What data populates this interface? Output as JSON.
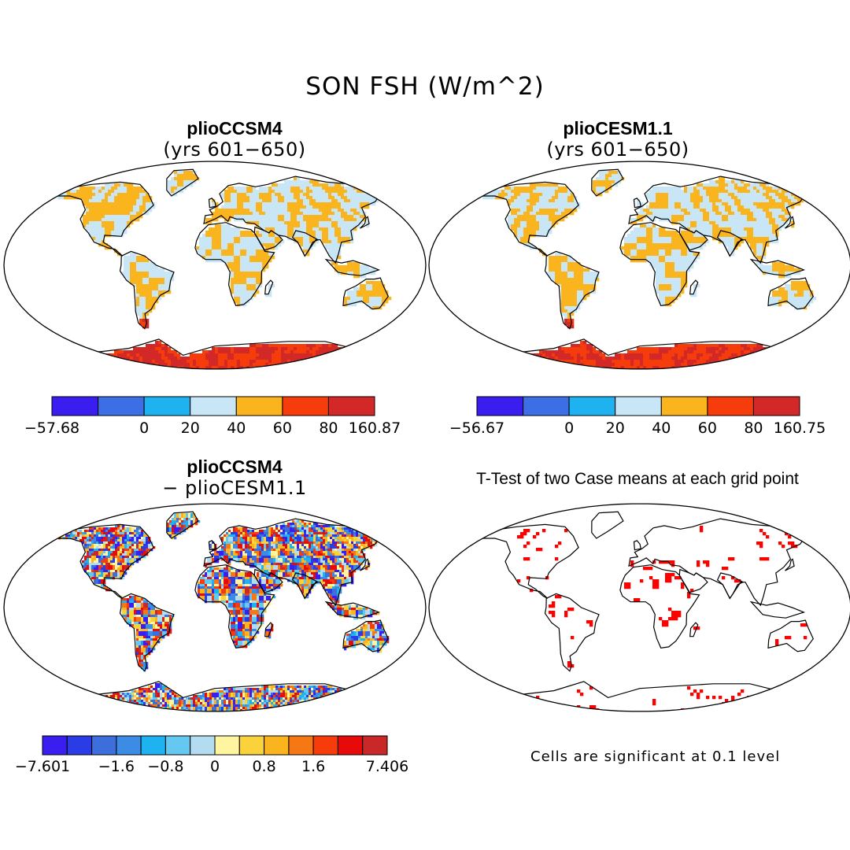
{
  "title": "SON FSH (W/m^2)",
  "panels": [
    {
      "id": "tl",
      "title": "plioCCSM4",
      "subtitle": "(yrs 601−650)",
      "type": "field",
      "colorbar": {
        "colors": [
          "#3a1ef0",
          "#3c6fe6",
          "#1eb2f0",
          "#c8e6f5",
          "#fab41e",
          "#f53c0a",
          "#d22828"
        ],
        "labels": [
          "−57.68",
          "0",
          "20",
          "40",
          "60",
          "80",
          "160.87"
        ],
        "label_at_boundary": [
          0,
          2,
          3,
          4,
          5,
          6,
          7
        ]
      }
    },
    {
      "id": "tr",
      "title": "plioCESM1.1",
      "subtitle": "(yrs 601−650)",
      "type": "field",
      "colorbar": {
        "colors": [
          "#3a1ef0",
          "#3c6fe6",
          "#1eb2f0",
          "#c8e6f5",
          "#fab41e",
          "#f53c0a",
          "#d22828"
        ],
        "labels": [
          "−56.67",
          "0",
          "20",
          "40",
          "60",
          "80",
          "160.75"
        ],
        "label_at_boundary": [
          0,
          2,
          3,
          4,
          5,
          6,
          7
        ]
      }
    },
    {
      "id": "bl",
      "title": "plioCCSM4",
      "subtitle": "− plioCESM1.1",
      "type": "difference",
      "colorbar": {
        "colors": [
          "#3a1ef0",
          "#2a3ce6",
          "#3c6fdc",
          "#3c8ce6",
          "#1eb2f0",
          "#64c8f0",
          "#b4dcf0",
          "#fff5a0",
          "#fad23c",
          "#fab41e",
          "#f57814",
          "#f53c0a",
          "#e60a0a",
          "#c82828"
        ],
        "labels": [
          "−7.601",
          "−1.6",
          "−0.8",
          "0",
          "0.8",
          "1.6",
          "7.406"
        ],
        "label_at_boundary": [
          0,
          3,
          5,
          7,
          9,
          11,
          14
        ]
      }
    },
    {
      "id": "br",
      "title": "T-Test of two Case means at each grid point",
      "subtitle": "",
      "type": "ttest",
      "note": "Cells are significant at 0.1 level",
      "significant_color": "#ff0000"
    }
  ]
}
